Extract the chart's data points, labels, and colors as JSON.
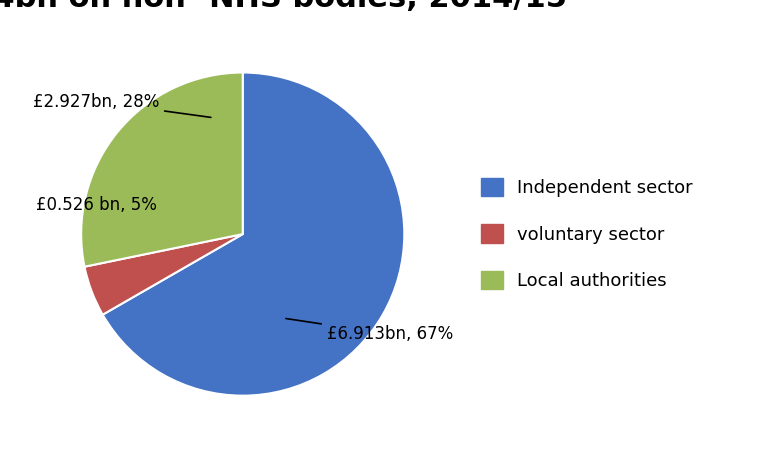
{
  "slices": [
    6.913,
    0.526,
    2.927
  ],
  "labels": [
    "Independent sector",
    "voluntary sector",
    "Local authorities"
  ],
  "colors": [
    "#4472C4",
    "#C0504D",
    "#9BBB59"
  ],
  "background_color": "#FFFFFF",
  "title_fontsize": 22,
  "legend_fontsize": 13,
  "ann_fontsize": 12,
  "ann_independent": "£6.913bn, 67%",
  "ann_voluntary": "£0.526 bn, 5%",
  "ann_local": "£2.927bn, 28%"
}
